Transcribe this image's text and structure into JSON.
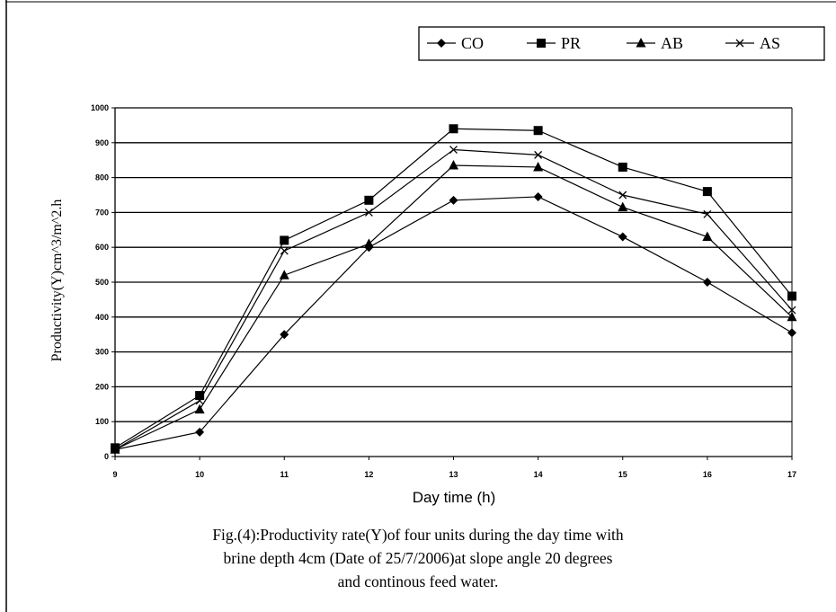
{
  "chart_data": {
    "type": "line",
    "x": [
      9,
      10,
      11,
      12,
      13,
      14,
      15,
      16,
      17
    ],
    "xlabel": "Day time (h)",
    "ylabel": "Productivity(Y)cm^3/m^2.h",
    "ylim": [
      0,
      1000
    ],
    "yticks": [
      0,
      100,
      200,
      300,
      400,
      500,
      600,
      700,
      800,
      900,
      1000
    ],
    "grid": "horizontal",
    "legend_position": "top-right",
    "series": [
      {
        "name": "CO",
        "marker": "diamond",
        "values": [
          20,
          70,
          350,
          600,
          735,
          745,
          630,
          500,
          355
        ]
      },
      {
        "name": "PR",
        "marker": "square",
        "values": [
          25,
          175,
          620,
          735,
          940,
          935,
          830,
          760,
          460
        ]
      },
      {
        "name": "AB",
        "marker": "triangle",
        "values": [
          20,
          135,
          520,
          610,
          835,
          830,
          715,
          630,
          400
        ]
      },
      {
        "name": "AS",
        "marker": "x",
        "values": [
          20,
          160,
          590,
          700,
          880,
          865,
          750,
          695,
          420
        ]
      }
    ]
  },
  "caption": {
    "line1": "Fig.(4):Productivity rate(Y)of four units during the day time with",
    "line2": "brine depth 4cm (Date of 25/7/2006)at slope angle 20 degrees",
    "line3": "and continous feed water."
  }
}
